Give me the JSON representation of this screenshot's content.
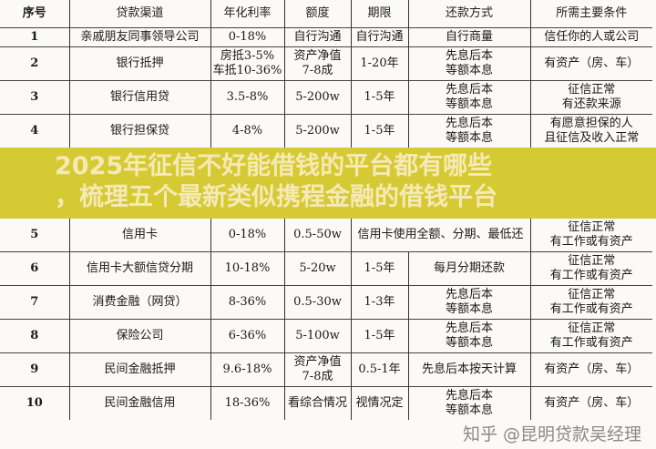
{
  "table": {
    "headers": [
      "序号",
      "贷款渠道",
      "年化利率",
      "额度",
      "期限",
      "还款方式",
      "所需主要条件"
    ],
    "rows": [
      {
        "no": "1",
        "channel": "亲戚朋友同事领导公司",
        "rate": "0-18%",
        "amount": "自行沟通",
        "term": "自行沟通",
        "repay": "自行商量",
        "cond": "信任你的人或公司"
      },
      {
        "no": "2",
        "channel": "银行抵押",
        "rate": "房抵3-5%\n车抵10-36%",
        "amount": "资产净值\n7-8成",
        "term": "1-20年",
        "repay": "先息后本\n等额本息",
        "cond": "有资产（房、车）"
      },
      {
        "no": "3",
        "channel": "银行信用贷",
        "rate": "3.5-8%",
        "amount": "5-200w",
        "term": "1-5年",
        "repay": "先息后本\n等额本息",
        "cond": "征信正常\n有还款来源"
      },
      {
        "no": "4",
        "channel": "银行担保贷",
        "rate": "4-8%",
        "amount": "5-200w",
        "term": "1-5年",
        "repay": "先息后本\n等额本息",
        "cond": "有愿意担保的人\n且征信及收入正常"
      },
      {
        "no": "5",
        "channel": "信用卡",
        "rate": "0-18%",
        "amount": "0.5-50w",
        "term": "信用卡使用全额、分期、最低还",
        "repay": "",
        "cond": "征信正常\n有工作或有资产"
      },
      {
        "no": "6",
        "channel": "信用卡大额信贷分期",
        "rate": "10-18%",
        "amount": "5-20w",
        "term": "1-5年",
        "repay": "每月分期还款",
        "cond": "征信正常\n有工作或有资产"
      },
      {
        "no": "7",
        "channel": "消费金融（网贷）",
        "rate": "8-36%",
        "amount": "0.5-30w",
        "term": "1-3年",
        "repay": "先息后本\n等额本息",
        "cond": "征信正常\n有工作或有资产"
      },
      {
        "no": "8",
        "channel": "保险公司",
        "rate": "6-36%",
        "amount": "5-100w",
        "term": "1-5年",
        "repay": "先息后本\n等额本息",
        "cond": "征信正常\n有工作或有资产"
      },
      {
        "no": "9",
        "channel": "民间金融抵押",
        "rate": "9.6-18%",
        "amount": "资产净值\n7-8成",
        "term": "0.5-1年",
        "repay": "先息后本按天计算",
        "cond": "有资产（房、车）"
      },
      {
        "no": "10",
        "channel": "民间金融信用",
        "rate": "18-36%",
        "amount": "看综合情况",
        "term": "视情况定",
        "repay": "先息后本\n等额本息",
        "cond": "有资产（房、车）"
      }
    ]
  },
  "banner": {
    "line1": "2025年征信不好能借钱的平台都有哪些",
    "line2": "，梳理五个最新类似携程金融的借钱平台",
    "color": "#d6ca34"
  },
  "watermark": "知乎 @昆明贷款吴经理"
}
